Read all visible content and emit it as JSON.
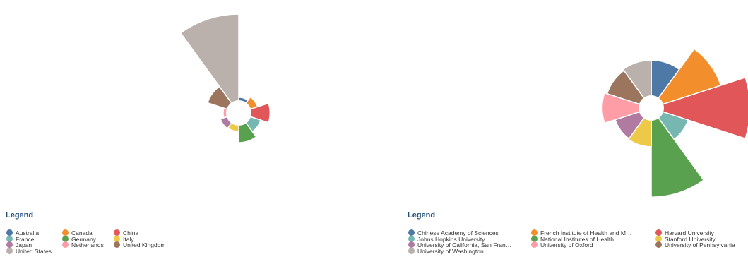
{
  "charts": [
    {
      "legend_title": "Legend",
      "chart_data": {
        "type": "pie",
        "style": "polar-area rose with equal-angle slices and a central hole",
        "categories": [
          "Australia",
          "Canada",
          "China",
          "France",
          "Germany",
          "Italy",
          "Japan",
          "Netherlands",
          "United Kingdom",
          "United States"
        ],
        "values": [
          2.5,
          4,
          10,
          5.5,
          9,
          3.5,
          3.8,
          2.5,
          11,
          100
        ],
        "colors": [
          "#4e79a7",
          "#f28e2b",
          "#e15759",
          "#76b7b2",
          "#59a14f",
          "#edc948",
          "#b07aa1",
          "#ff9da7",
          "#9c755f",
          "#bab0ac"
        ],
        "legend": "bottom-left"
      }
    },
    {
      "legend_title": "Legend",
      "chart_data": {
        "type": "pie",
        "style": "polar-area rose with equal-angle slices and a central hole",
        "categories": [
          "Chinese Academy of Sciences",
          "French Institute of Health and M…",
          "Harvard University",
          "Johns Hopkins University",
          "National Institutes of Health",
          "Stanford University",
          "University of California, San Fran…",
          "University of Oxford",
          "University of Pennsylvania",
          "University of Washington"
        ],
        "values": [
          3.5,
          8.2,
          15,
          2.3,
          12.2,
          2.3,
          2.2,
          3.7,
          3.3,
          3.5
        ],
        "colors": [
          "#4e79a7",
          "#f28e2b",
          "#e15759",
          "#76b7b2",
          "#59a14f",
          "#edc948",
          "#b07aa1",
          "#ff9da7",
          "#9c755f",
          "#bab0ac"
        ],
        "legend": "bottom-left"
      }
    }
  ]
}
